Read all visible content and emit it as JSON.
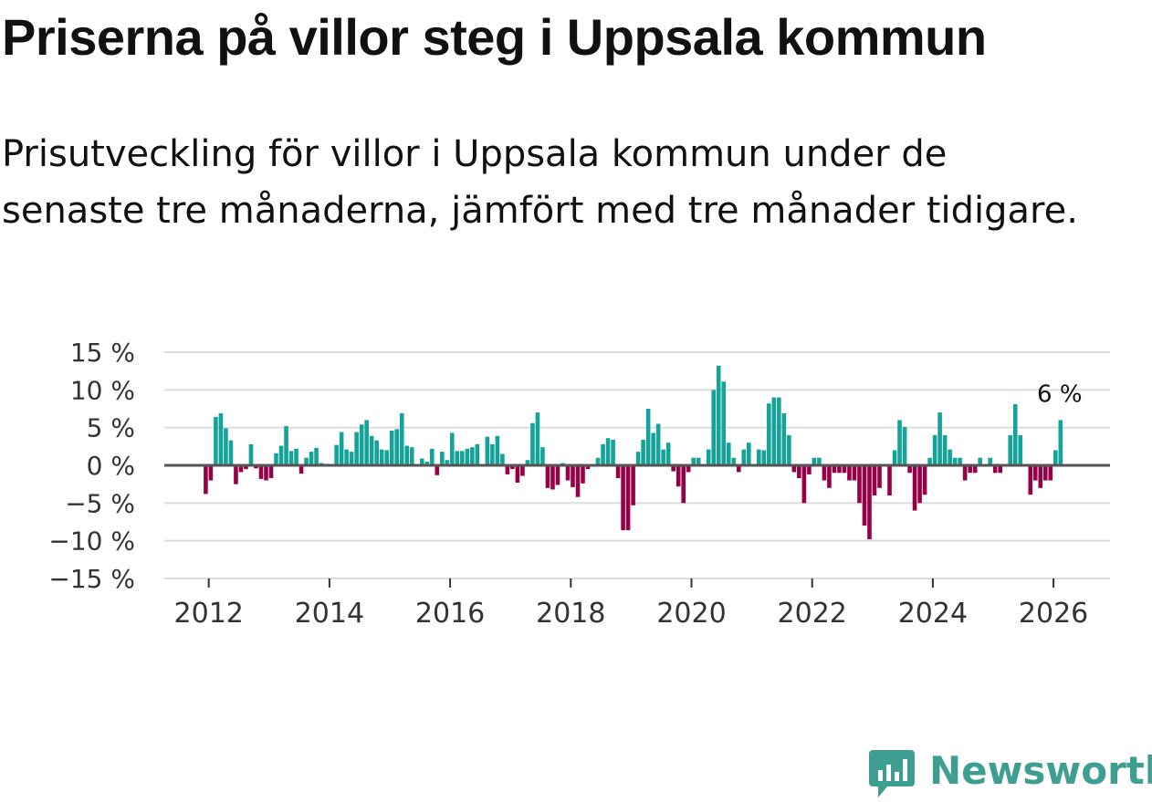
{
  "title": "Priserna på villor steg i Uppsala kommun",
  "subtitle": "Prisutveckling för villor i Uppsala kommun under de senaste tre månaderna, jämfört med tre månader tidigare.",
  "brand": {
    "name": "Newsworthy",
    "color": "#3f9e92",
    "icon": "newsworthy-logo-icon"
  },
  "colors": {
    "positive": "#14a398",
    "negative": "#960046",
    "grid": "#dcdcdc",
    "zero": "#555555"
  },
  "chart_data": {
    "type": "bar",
    "title": "Priserna på villor steg i Uppsala kommun",
    "ylabel": "",
    "xlabel": "",
    "ylim": [
      -15,
      15
    ],
    "yticks": [
      15,
      10,
      5,
      0,
      -5,
      -10,
      -15
    ],
    "ytick_labels": [
      "15 %",
      "10 %",
      "5 %",
      "0 %",
      "−5 %",
      "−10 %",
      "−15 %"
    ],
    "xticks": [
      2012,
      2014,
      2016,
      2018,
      2020,
      2022,
      2024,
      2026
    ],
    "xtick_labels": [
      "2012",
      "2014",
      "2016",
      "2018",
      "2020",
      "2022",
      "2024",
      "2026"
    ],
    "x_start": 2011.95,
    "x_step": 0.0833333,
    "values": [
      -3.8,
      -2,
      6.4,
      6.9,
      4.9,
      3.3,
      -2.5,
      -0.9,
      -0.5,
      2.8,
      -0.4,
      -1.8,
      -2,
      -1.7,
      1.6,
      2.6,
      5.2,
      1.9,
      2.2,
      -1.1,
      1,
      1.8,
      2.3,
      0.3,
      0.2,
      0,
      2.7,
      4.4,
      2.1,
      1.8,
      4.4,
      5.4,
      6,
      3.9,
      3.3,
      2.1,
      2,
      4.6,
      4.8,
      6.9,
      2.6,
      2.4,
      0,
      0.9,
      0.5,
      2.2,
      -1.3,
      1.8,
      0.7,
      4.3,
      1.9,
      1.9,
      2.2,
      2.4,
      2.8,
      0,
      3.8,
      2.8,
      3.9,
      1.5,
      -1.2,
      -0.5,
      -2.3,
      -1.4,
      0.7,
      5.6,
      7,
      2.4,
      -3,
      -3.2,
      -2.6,
      0.3,
      -2,
      -2.9,
      -4.2,
      -2.4,
      -0.5,
      0,
      1,
      2.8,
      3.6,
      3.4,
      -1.7,
      -8.6,
      -8.6,
      -5.3,
      1.8,
      3.4,
      7.5,
      4.3,
      5.5,
      2.1,
      3,
      -0.8,
      -2.8,
      -5,
      -0.9,
      1,
      1,
      0,
      2.1,
      10,
      13.2,
      11.1,
      3,
      1,
      -0.9,
      2.1,
      3,
      0,
      2.1,
      2,
      8.2,
      9,
      9,
      6.9,
      4,
      -0.9,
      -1.7,
      -5,
      -1.2,
      1,
      1,
      -2,
      -3,
      -1,
      -1,
      -1,
      -2,
      -2,
      -5,
      -8,
      -9.8,
      -4,
      -3,
      0,
      -4,
      2,
      6,
      5.1,
      -1,
      -6,
      -5,
      -3.9,
      1,
      4,
      7,
      4,
      2.1,
      1,
      1,
      -2,
      -1,
      -1,
      1,
      0,
      1,
      -1,
      -1,
      0,
      4,
      8.1,
      4,
      0,
      -3.9,
      -2,
      -3,
      -2,
      -2,
      2,
      6
    ],
    "annotations": [
      {
        "text": "6 %",
        "target": "last-bar"
      }
    ]
  }
}
